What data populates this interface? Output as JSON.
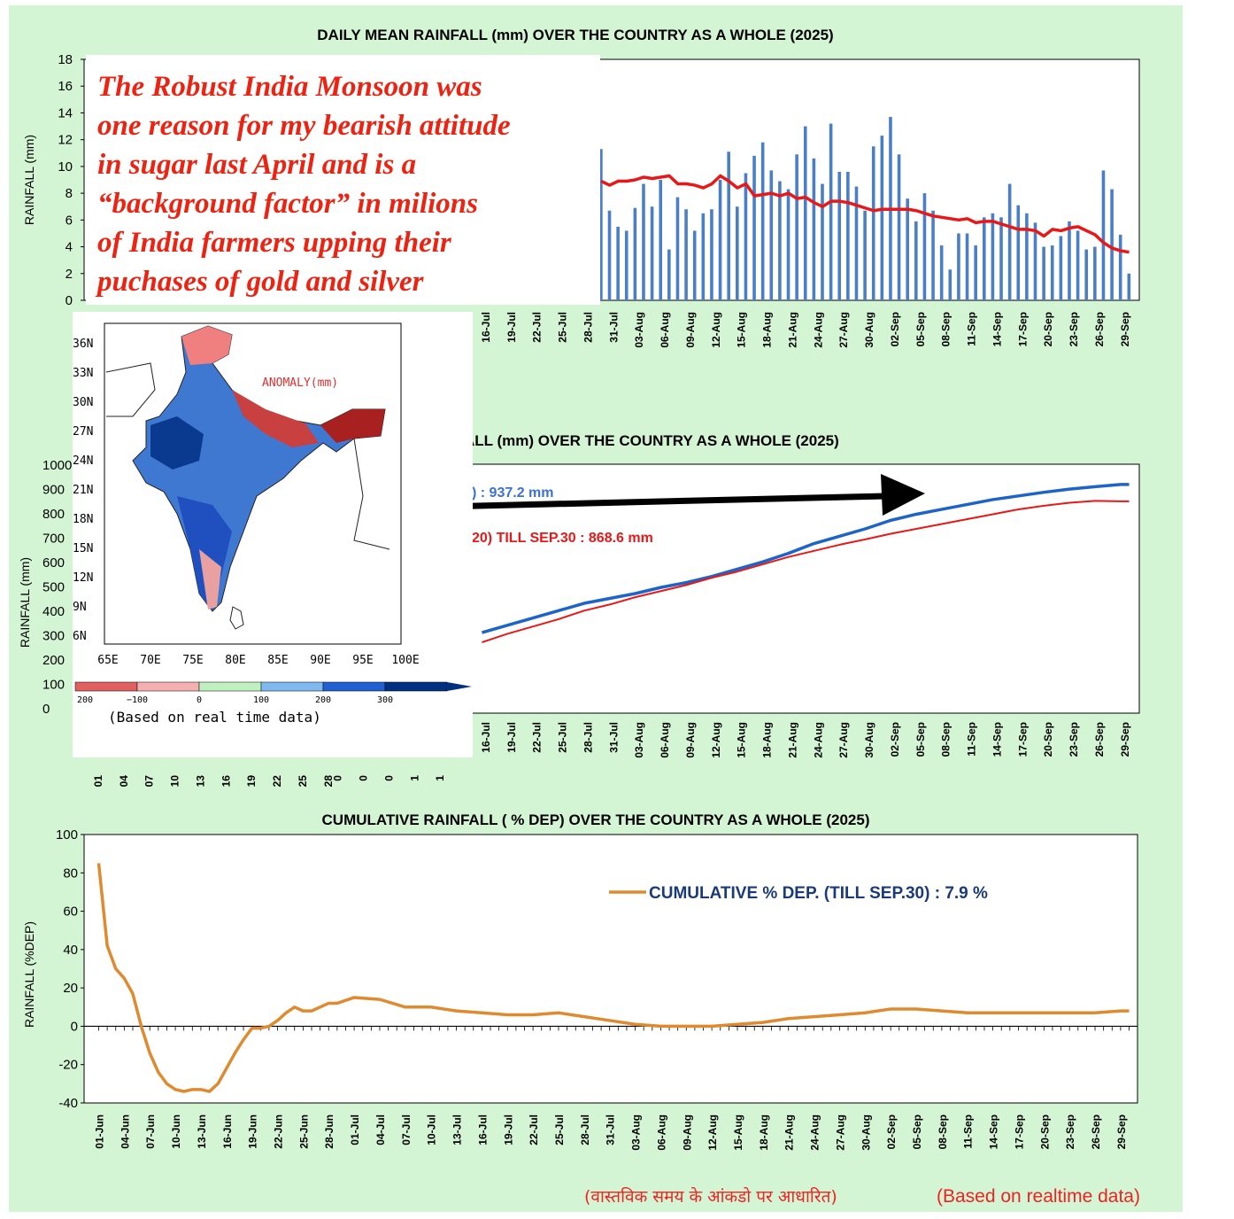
{
  "annotation": {
    "lines": [
      "The Robust India Monsoon was",
      "one reason for my bearish attitude",
      "in sugar last April and is a",
      "“background factor” in milions",
      "of India farmers upping their",
      "puchases of gold and silver"
    ]
  },
  "footer": {
    "hindi": "(वास्तविक समय के आंकडो पर आधारित)",
    "english": "(Based on realtime data)"
  },
  "chart_data": [
    {
      "type": "bar",
      "title": "DAILY MEAN RAINFALL (mm) OVER THE COUNTRY AS A WHOLE  (2025)",
      "ylabel": "RAINFALL (mm)",
      "ylim": [
        0,
        18
      ],
      "yticks": [
        0,
        2,
        4,
        6,
        8,
        10,
        12,
        14,
        16,
        18
      ],
      "x_tick_labels": [
        "16-Jul",
        "19-Jul",
        "22-Jul",
        "25-Jul",
        "28-Jul",
        "31-Jul",
        "03-Aug",
        "06-Aug",
        "09-Aug",
        "12-Aug",
        "15-Aug",
        "18-Aug",
        "21-Aug",
        "24-Aug",
        "27-Aug",
        "30-Aug",
        "02-Sep",
        "05-Sep",
        "08-Sep",
        "11-Sep",
        "14-Sep",
        "17-Sep",
        "20-Sep",
        "23-Sep",
        "26-Sep",
        "29-Sep"
      ],
      "series": [
        {
          "kind": "bar",
          "color": "#4a7fc8",
          "start_day": 59,
          "values": [
            11.3,
            6.7,
            5.5,
            5.2,
            6.9,
            8.7,
            7.0,
            9.0,
            3.8,
            7.7,
            6.8,
            5.2,
            6.5,
            6.8,
            9.0,
            11.1,
            7.0,
            9.5,
            10.8,
            11.8,
            9.7,
            8.9,
            8.3,
            10.9,
            13.0,
            10.6,
            8.7,
            13.2,
            9.6,
            9.6,
            8.5,
            6.7,
            11.5,
            12.3,
            13.7,
            10.9,
            7.6,
            5.9,
            8.0,
            6.7,
            4.1,
            2.3,
            5.0,
            5.0,
            4.1,
            6.2,
            6.5,
            6.2,
            8.7,
            7.1,
            6.5,
            5.8,
            4.0,
            4.1,
            4.8,
            5.9,
            5.2,
            3.8,
            4.0,
            9.7,
            8.3,
            4.9,
            2.0
          ]
        },
        {
          "kind": "line",
          "color": "#e81818",
          "start_day": 59,
          "values": [
            8.9,
            8.6,
            8.9,
            8.9,
            9.0,
            9.2,
            9.1,
            9.2,
            9.3,
            8.7,
            8.7,
            8.6,
            8.4,
            8.7,
            9.3,
            8.9,
            8.4,
            8.7,
            7.8,
            7.9,
            8.0,
            7.8,
            8.0,
            7.6,
            7.7,
            7.3,
            7.0,
            7.4,
            7.4,
            7.3,
            7.1,
            6.9,
            6.7,
            6.8,
            6.8,
            6.8,
            6.8,
            6.7,
            6.5,
            6.3,
            6.2,
            6.1,
            6.0,
            6.1,
            5.8,
            5.9,
            5.9,
            5.7,
            5.5,
            5.3,
            5.3,
            5.2,
            4.8,
            5.3,
            5.2,
            5.4,
            5.5,
            5.2,
            4.9,
            4.3,
            3.9,
            3.7,
            3.6
          ]
        }
      ]
    },
    {
      "type": "line",
      "title": "ALL (mm) OVER THE COUNTRY AS A WHOLE  (2025)",
      "ylabel": "RAINFALL  (mm)",
      "y_tick_labels": [
        "1000",
        "900",
        "800",
        "700",
        "600",
        "500",
        "400",
        "300",
        "200",
        "100",
        "0"
      ],
      "x_tick_labels": [
        "16-Jul",
        "19-Jul",
        "22-Jul",
        "25-Jul",
        "28-Jul",
        "31-Jul",
        "03-Aug",
        "06-Aug",
        "09-Aug",
        "12-Aug",
        "15-Aug",
        "18-Aug",
        "21-Aug",
        "24-Aug",
        "27-Aug",
        "30-Aug",
        "02-Sep",
        "05-Sep",
        "08-Sep",
        "11-Sep",
        "14-Sep",
        "17-Sep",
        "20-Sep",
        "23-Sep",
        "26-Sep",
        "29-Sep"
      ],
      "partial_x_tick_labels": [
        "01",
        "04",
        "07",
        "10",
        "13",
        "16",
        "19",
        "22",
        "25",
        "28",
        "0",
        "0",
        "0",
        "1",
        "1"
      ],
      "legend_actual": ") : 937.2 mm",
      "legend_normal": "20) TILL SEP.30 : 868.6 mm",
      "series": [
        {
          "color": "#1e64c8",
          "x": [
            45,
            48,
            51,
            54,
            57,
            60,
            63,
            66,
            69,
            72,
            75,
            78,
            81,
            84,
            87,
            90,
            93,
            96,
            99,
            102,
            105,
            108,
            111,
            114,
            117,
            120,
            121
          ],
          "values": [
            330,
            360,
            390,
            420,
            450,
            470,
            490,
            515,
            535,
            560,
            590,
            620,
            655,
            695,
            725,
            755,
            790,
            815,
            835,
            855,
            875,
            890,
            905,
            918,
            928,
            937,
            937
          ]
        },
        {
          "color": "#e81818",
          "x": [
            45,
            48,
            51,
            54,
            57,
            60,
            63,
            66,
            69,
            72,
            75,
            78,
            81,
            84,
            87,
            90,
            93,
            96,
            99,
            102,
            105,
            108,
            111,
            114,
            117,
            120,
            121
          ],
          "values": [
            290,
            325,
            355,
            385,
            420,
            445,
            475,
            500,
            525,
            555,
            580,
            610,
            640,
            665,
            690,
            712,
            735,
            755,
            775,
            795,
            815,
            835,
            850,
            862,
            870,
            868,
            868
          ]
        }
      ]
    },
    {
      "type": "line",
      "title": "CUMULATIVE RAINFALL ( % DEP) OVER THE COUNTRY AS A WHOLE (2025)",
      "ylabel": "RAINFALL  (%DEP)",
      "ylim": [
        -40,
        100
      ],
      "yticks": [
        -40,
        -20,
        0,
        20,
        40,
        60,
        80,
        100
      ],
      "x_tick_labels": [
        "01-Jun",
        "04-Jun",
        "07-Jun",
        "10-Jun",
        "13-Jun",
        "16-Jun",
        "19-Jun",
        "22-Jun",
        "25-Jun",
        "28-Jun",
        "01-Jul",
        "04-Jul",
        "07-Jul",
        "10-Jul",
        "13-Jul",
        "16-Jul",
        "19-Jul",
        "22-Jul",
        "25-Jul",
        "28-Jul",
        "31-Jul",
        "03-Aug",
        "06-Aug",
        "09-Aug",
        "12-Aug",
        "15-Aug",
        "18-Aug",
        "21-Aug",
        "24-Aug",
        "27-Aug",
        "30-Aug",
        "02-Sep",
        "05-Sep",
        "08-Sep",
        "11-Sep",
        "14-Sep",
        "17-Sep",
        "20-Sep",
        "23-Sep",
        "26-Sep",
        "29-Sep"
      ],
      "legend": "CUMULATIVE % DEP.  (TILL  SEP.30) : 7.9 %",
      "series": [
        {
          "color": "#e08a30",
          "x": [
            0,
            1,
            2,
            3,
            4,
            5,
            6,
            7,
            8,
            9,
            10,
            11,
            12,
            13,
            14,
            15,
            16,
            17,
            18,
            19,
            20,
            21,
            22,
            23,
            24,
            25,
            26,
            27,
            28,
            30,
            33,
            36,
            39,
            42,
            45,
            48,
            51,
            54,
            57,
            60,
            63,
            66,
            69,
            72,
            75,
            78,
            81,
            84,
            87,
            90,
            93,
            96,
            99,
            102,
            105,
            108,
            111,
            114,
            117,
            120,
            121
          ],
          "values": [
            85,
            42,
            30,
            25,
            17,
            0,
            -14,
            -24,
            -30,
            -33,
            -34,
            -33,
            -33,
            -34,
            -30,
            -22,
            -14,
            -7,
            -1,
            -1,
            0,
            3,
            7,
            10,
            8,
            8,
            10,
            12,
            12,
            15,
            14,
            10,
            10,
            8,
            7,
            6,
            6,
            7,
            5,
            3,
            1,
            0,
            0,
            0,
            1,
            2,
            4,
            5,
            6,
            7,
            9,
            9,
            8,
            7,
            7,
            7,
            7,
            7,
            7,
            8,
            8
          ]
        }
      ]
    }
  ],
  "map_inset": {
    "legend_title": "ANOMALY(mm)",
    "lat_labels": [
      "36N",
      "33N",
      "30N",
      "27N",
      "24N",
      "21N",
      "18N",
      "15N",
      "12N",
      "9N",
      "6N"
    ],
    "lon_labels": [
      "65E",
      "70E",
      "75E",
      "80E",
      "85E",
      "90E",
      "95E",
      "100E"
    ],
    "scale_labels": [
      "200",
      "−100",
      "0",
      "100",
      "200",
      "300"
    ],
    "scale_colors": [
      "#e06060",
      "#f4b0b0",
      "#c0f0c0",
      "#80b8f0",
      "#2060d0",
      "#003080"
    ],
    "caption": "(Based on real time data)"
  }
}
